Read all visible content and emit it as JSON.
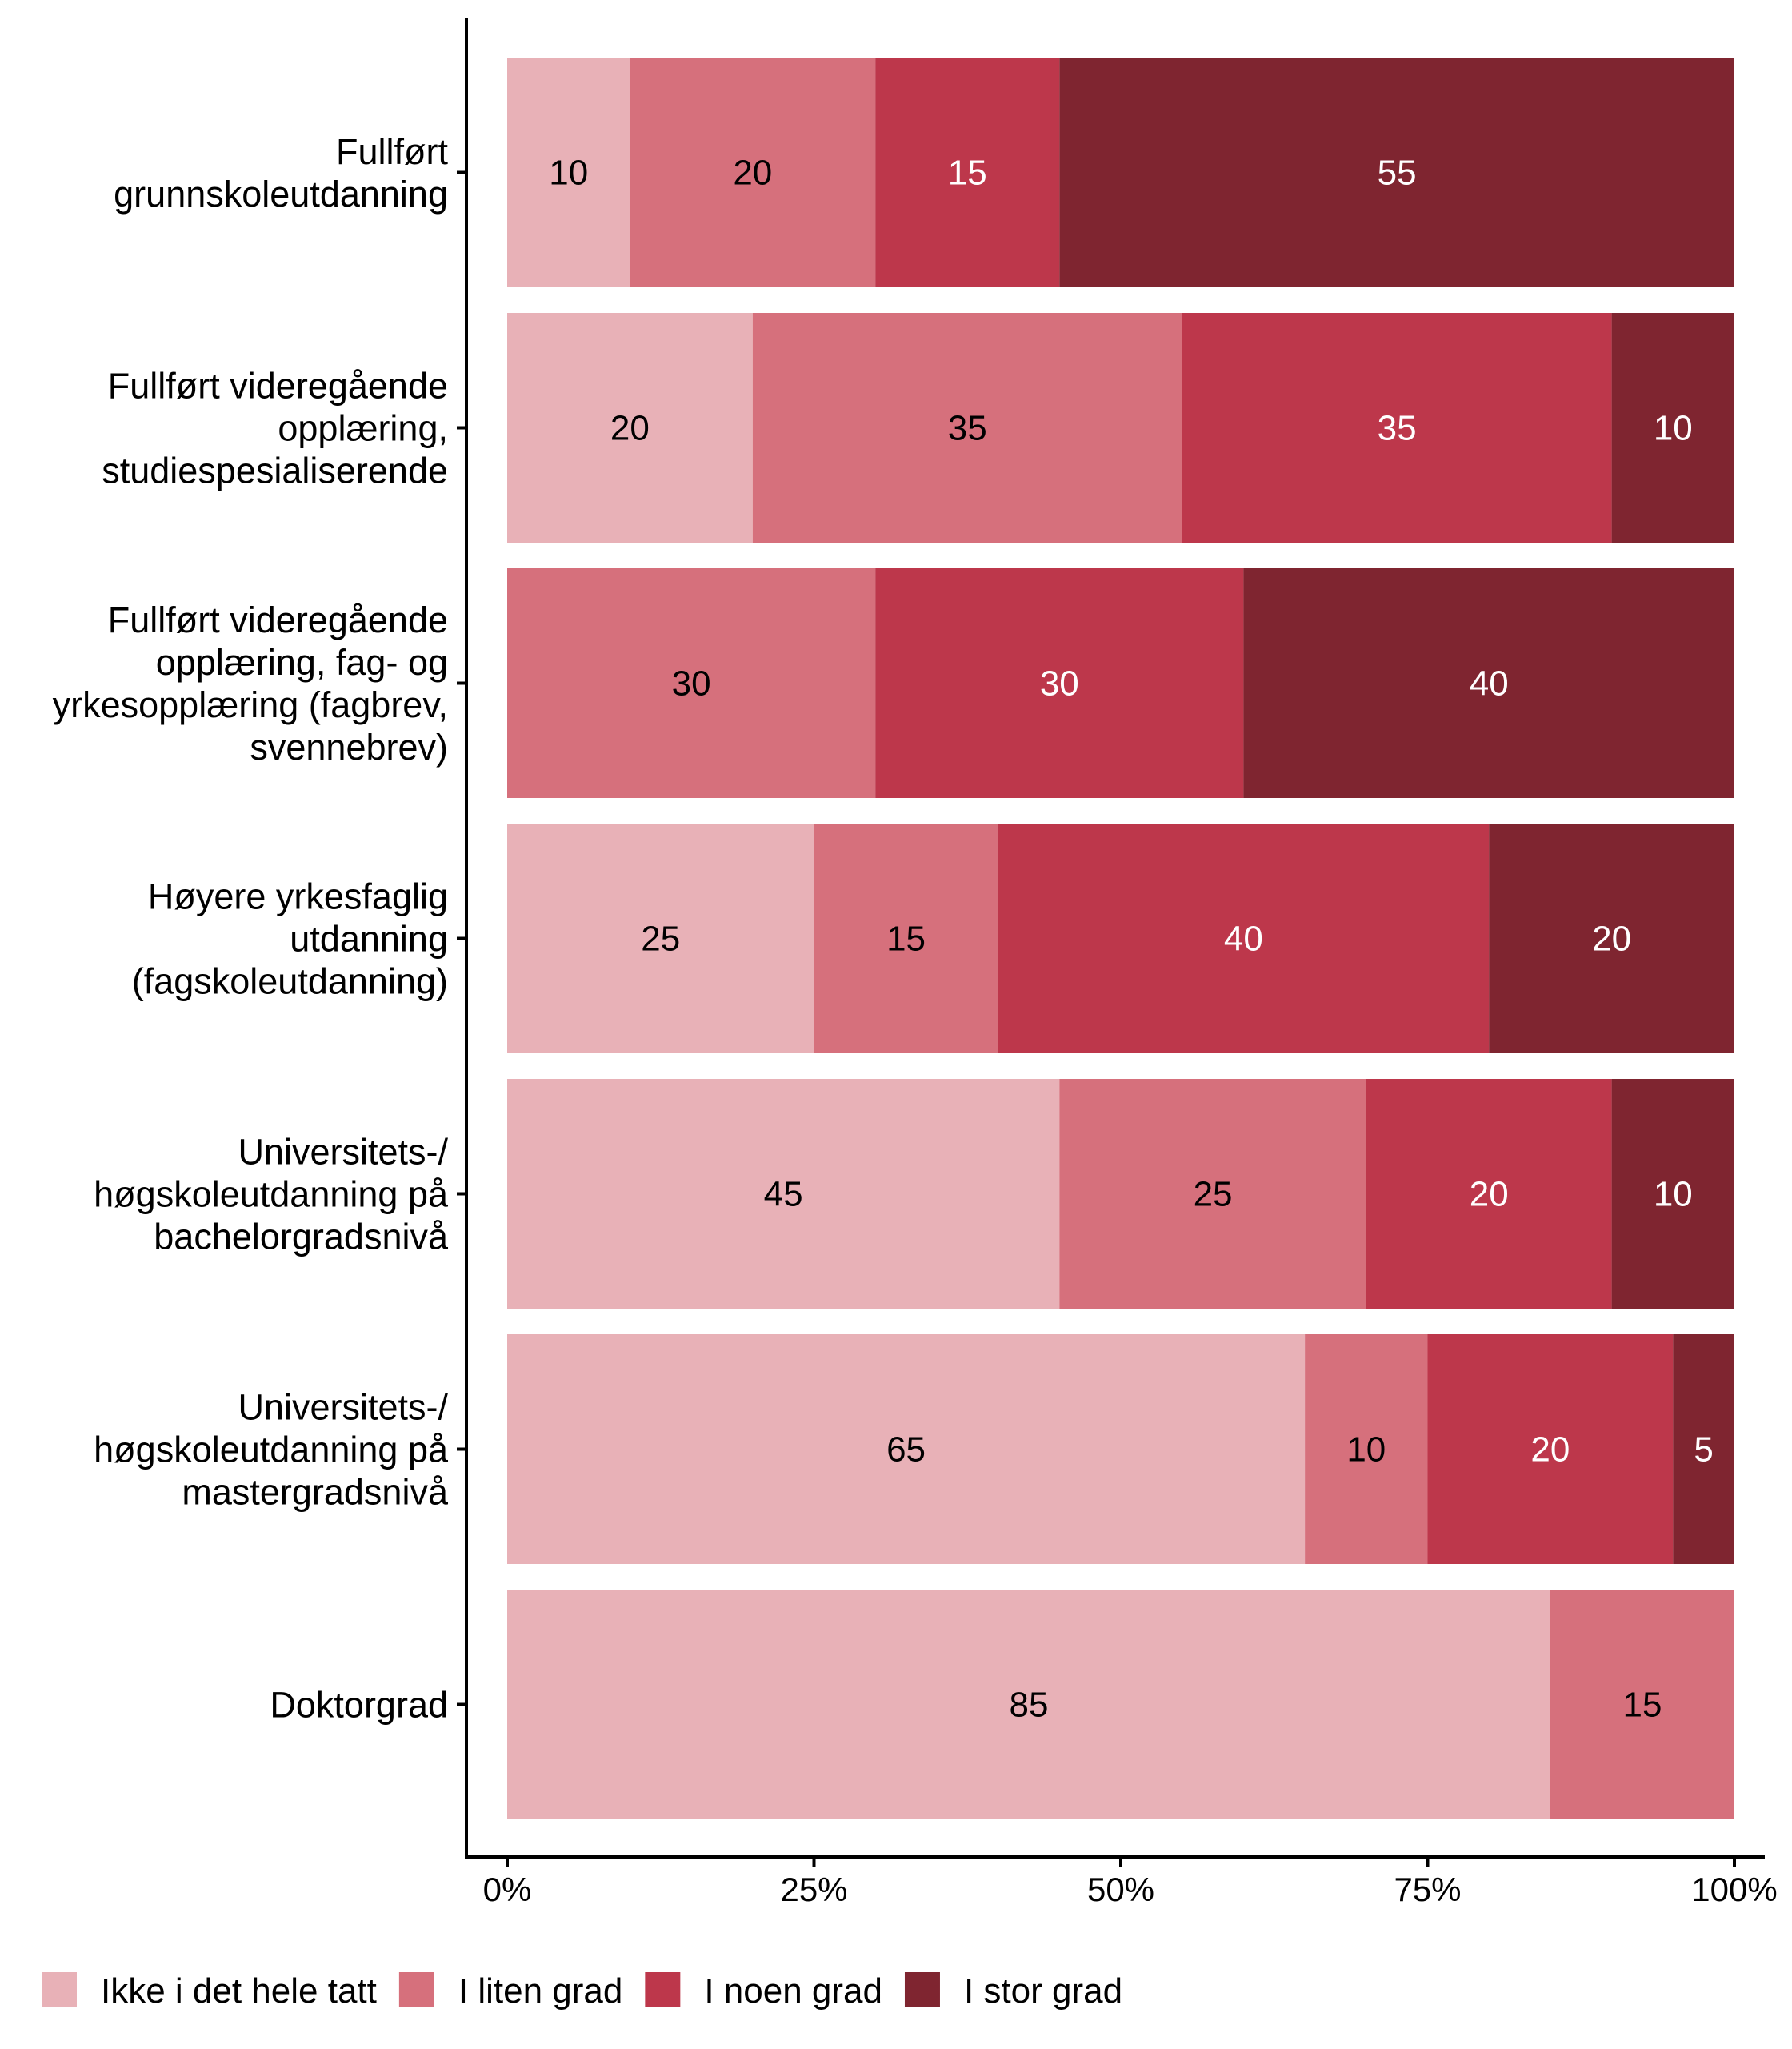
{
  "chart_data": {
    "type": "bar",
    "orientation": "horizontal",
    "stacked": true,
    "title": "",
    "xlabel": "",
    "ylabel": "",
    "xlim": [
      0,
      100
    ],
    "x_ticks": [
      "0%",
      "25%",
      "50%",
      "75%",
      "100%"
    ],
    "x_tick_values": [
      0,
      25,
      50,
      75,
      100
    ],
    "grid": false,
    "legend_position": "bottom",
    "categories": [
      [
        "Fullført",
        "grunnskoleutdanning"
      ],
      [
        "Fullført videregående",
        "opplæring,",
        "studiespesialiserende"
      ],
      [
        "Fullført videregående",
        "opplæring, fag- og",
        "yrkesopplæring (fagbrev,",
        "svennebrev)"
      ],
      [
        "Høyere yrkesfaglig",
        "utdanning",
        "(fagskoleutdanning)"
      ],
      [
        "Universitets-/",
        "høgskoleutdanning på",
        "bachelorgradsnivå"
      ],
      [
        "Universitets-/",
        "høgskoleutdanning på",
        "mastergradsnivå"
      ],
      [
        "Doktorgrad"
      ]
    ],
    "series": [
      {
        "name": "Ikke i det hele tatt",
        "color": "#E8B1B7",
        "label_color": "#000000",
        "values": [
          10,
          20,
          0,
          25,
          45,
          65,
          85
        ]
      },
      {
        "name": "I liten grad",
        "color": "#D6707C",
        "label_color": "#000000",
        "values": [
          20,
          35,
          30,
          15,
          25,
          10,
          15
        ]
      },
      {
        "name": "I noen grad",
        "color": "#BD374B",
        "label_color": "#FFFFFF",
        "values": [
          15,
          35,
          30,
          40,
          20,
          20,
          0
        ]
      },
      {
        "name": "I stor grad",
        "color": "#7F2530",
        "label_color": "#FFFFFF",
        "values": [
          55,
          10,
          40,
          20,
          10,
          5,
          0
        ]
      }
    ]
  }
}
